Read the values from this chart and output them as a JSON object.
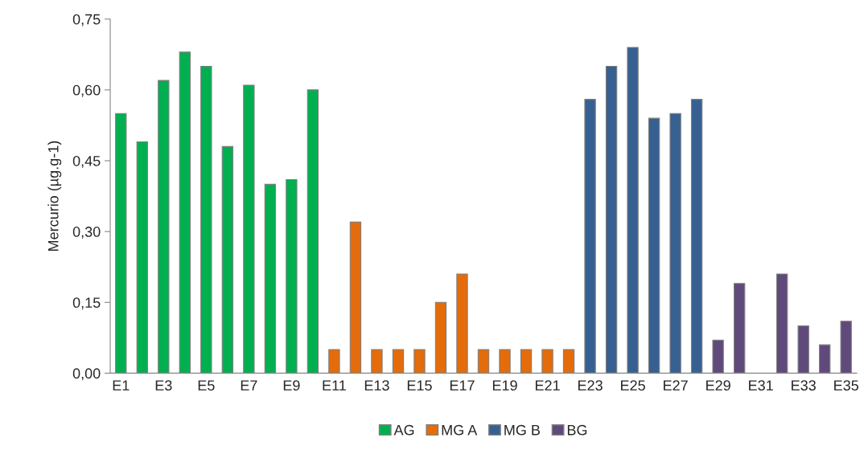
{
  "chart_data": {
    "type": "bar",
    "ylabel": "Mercurio (µg.g-1)",
    "categories": [
      "E1",
      null,
      "E3",
      null,
      "E5",
      null,
      "E7",
      null,
      "E9",
      null,
      "E11",
      null,
      "E13",
      null,
      "E15",
      null,
      "E17",
      null,
      "E19",
      null,
      "E21",
      null,
      "E23",
      null,
      "E25",
      null,
      "E27",
      null,
      "E29",
      null,
      "E31",
      null,
      "E33",
      null,
      "E35"
    ],
    "series": [
      {
        "name": "AG",
        "color": "#00b050",
        "values": [
          0.55,
          0.49,
          0.62,
          0.68,
          0.65,
          0.48,
          0.61,
          0.4,
          0.41,
          0.6,
          null,
          null,
          null,
          null,
          null,
          null,
          null,
          null,
          null,
          null,
          null,
          null,
          null,
          null,
          null,
          null,
          null,
          null,
          null,
          null,
          null,
          null,
          null,
          null,
          null
        ]
      },
      {
        "name": "MG A",
        "color": "#e46c0a",
        "values": [
          null,
          null,
          null,
          null,
          null,
          null,
          null,
          null,
          null,
          null,
          0.05,
          0.32,
          0.05,
          0.05,
          0.05,
          0.15,
          0.21,
          0.05,
          0.05,
          0.05,
          0.05,
          0.05,
          null,
          null,
          null,
          null,
          null,
          null,
          null,
          null,
          null,
          null,
          null,
          null,
          null
        ]
      },
      {
        "name": "MG B",
        "color": "#376092",
        "values": [
          null,
          null,
          null,
          null,
          null,
          null,
          null,
          null,
          null,
          null,
          null,
          null,
          null,
          null,
          null,
          null,
          null,
          null,
          null,
          null,
          null,
          null,
          0.58,
          0.65,
          0.69,
          0.54,
          0.55,
          0.58,
          null,
          null,
          null,
          null,
          null,
          null,
          null
        ]
      },
      {
        "name": "BG",
        "color": "#604a7b",
        "values": [
          null,
          null,
          null,
          null,
          null,
          null,
          null,
          null,
          null,
          null,
          null,
          null,
          null,
          null,
          null,
          null,
          null,
          null,
          null,
          null,
          null,
          null,
          null,
          null,
          null,
          null,
          null,
          null,
          0.07,
          0.19,
          null,
          0.21,
          0.1,
          0.06,
          0.11
        ]
      }
    ],
    "ylim": [
      0,
      0.75
    ],
    "yticks": [
      {
        "value": 0,
        "label": "0,00"
      },
      {
        "value": 0.15,
        "label": "0,15"
      },
      {
        "value": 0.3,
        "label": "0,30"
      },
      {
        "value": 0.45,
        "label": "0,45"
      },
      {
        "value": 0.6,
        "label": "0,60"
      },
      {
        "value": 0.75,
        "label": "0,75"
      }
    ],
    "grid": false,
    "legend": "bottom"
  }
}
